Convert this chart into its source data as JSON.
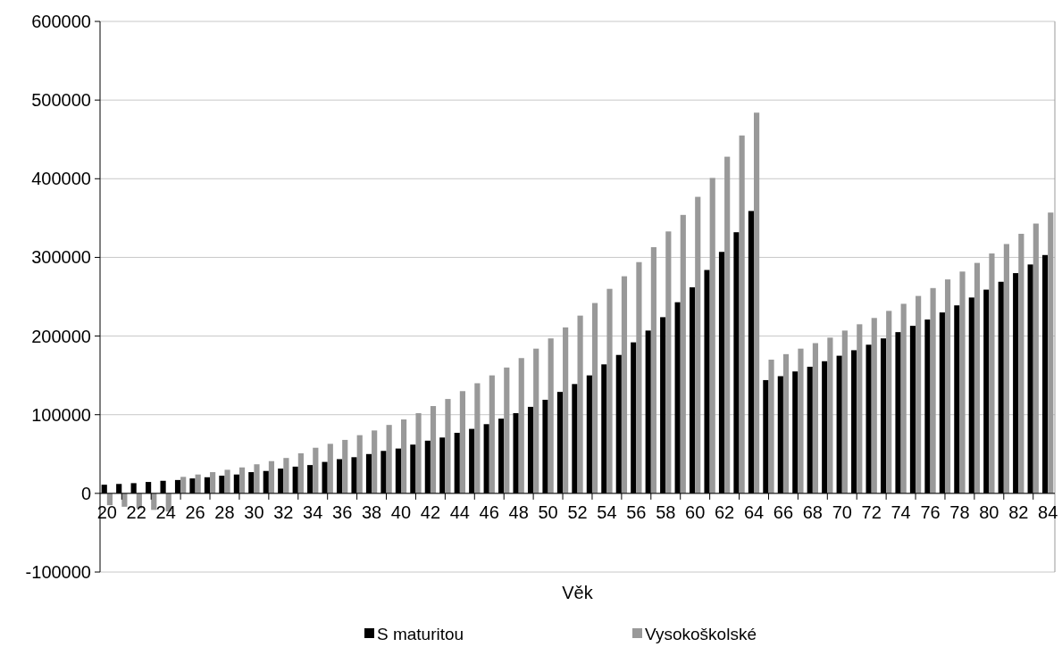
{
  "chart_data": {
    "type": "bar",
    "xlabel": "Věk",
    "categories": [
      "20",
      null,
      "22",
      null,
      "24",
      null,
      "26",
      null,
      "28",
      null,
      "30",
      null,
      "32",
      null,
      "34",
      null,
      "36",
      null,
      "38",
      null,
      "40",
      null,
      "42",
      null,
      "44",
      null,
      "46",
      null,
      "48",
      null,
      "50",
      null,
      "52",
      null,
      "54",
      null,
      "56",
      null,
      "58",
      null,
      "60",
      null,
      "62",
      null,
      "64",
      null,
      "66",
      null,
      "68",
      null,
      "70",
      null,
      "72",
      null,
      "74",
      null,
      "76",
      null,
      "78",
      null,
      "80",
      null,
      "82",
      null,
      "84"
    ],
    "series": [
      {
        "name": "S maturitou",
        "color": "#000000",
        "values": [
          11000,
          12000,
          13000,
          14500,
          16000,
          17000,
          19000,
          20500,
          22500,
          24000,
          27000,
          28500,
          31500,
          34000,
          36000,
          40000,
          43500,
          46000,
          50000,
          54000,
          57000,
          62000,
          67000,
          71000,
          77000,
          82000,
          88000,
          95000,
          102000,
          110000,
          119000,
          129000,
          139000,
          150000,
          164000,
          176000,
          192000,
          207000,
          224000,
          243000,
          262000,
          284000,
          307000,
          332000,
          359000,
          144000,
          149000,
          155000,
          161000,
          168000,
          175000,
          182000,
          189000,
          197000,
          205000,
          213000,
          221000,
          230000,
          239000,
          249000,
          259000,
          269000,
          280000,
          291000,
          303000
        ]
      },
      {
        "name": "Vysokoškolské",
        "color": "#999999",
        "values": [
          -15000,
          -17000,
          -19000,
          -21000,
          -23000,
          21000,
          24000,
          27000,
          30000,
          33000,
          37000,
          41000,
          45000,
          51000,
          58000,
          63000,
          68000,
          74000,
          80000,
          87000,
          94000,
          102000,
          111000,
          120000,
          130000,
          140000,
          150000,
          160000,
          172000,
          184000,
          197000,
          211000,
          226000,
          242000,
          260000,
          276000,
          294000,
          313000,
          333000,
          354000,
          377000,
          401000,
          428000,
          455000,
          484000,
          170000,
          177000,
          184000,
          191000,
          198000,
          207000,
          215000,
          223000,
          232000,
          241000,
          251000,
          261000,
          272000,
          282000,
          293000,
          305000,
          317000,
          330000,
          343000,
          357000
        ]
      }
    ],
    "ylim": [
      -100000,
      600000
    ],
    "yticks": [
      -100000,
      0,
      100000,
      200000,
      300000,
      400000,
      500000,
      600000
    ],
    "grid": "y",
    "legend": "bottom"
  }
}
